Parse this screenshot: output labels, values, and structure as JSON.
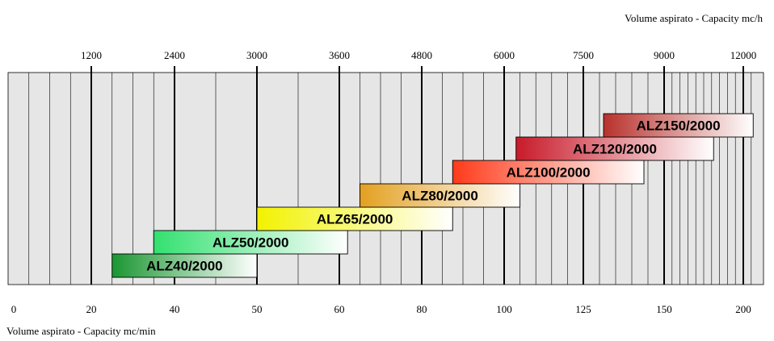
{
  "chart_data": {
    "type": "bar",
    "orientation": "horizontal-range",
    "top_axis_title": "Volume aspirato - Capacity mc/h",
    "bottom_axis_title": "Volume aspirato - Capacity mc/min",
    "top_ticks": [
      "1200",
      "2400",
      "3000",
      "3600",
      "4800",
      "6000",
      "7500",
      "9000",
      "12000"
    ],
    "bottom_ticks": [
      "0",
      "20",
      "40",
      "50",
      "60",
      "80",
      "100",
      "125",
      "150",
      "200"
    ],
    "series": [
      {
        "label": "ALZ40/2000",
        "start": 25,
        "end": 50,
        "color": "#1a9632"
      },
      {
        "label": "ALZ50/2000",
        "start": 35,
        "end": 62,
        "color": "#33e070"
      },
      {
        "label": "ALZ65/2000",
        "start": 50,
        "end": 87.5,
        "color": "#f2f200"
      },
      {
        "label": "ALZ80/2000",
        "start": 65,
        "end": 105,
        "color": "#e3a020"
      },
      {
        "label": "ALZ100/2000",
        "start": 87.5,
        "end": 143.75,
        "color": "#ff3a1a"
      },
      {
        "label": "ALZ120/2000",
        "start": 103.75,
        "end": 181.25,
        "color": "#c81a2a"
      },
      {
        "label": "ALZ150/2000",
        "start": 131.25,
        "end": 206.25,
        "color": "#b8312c"
      }
    ],
    "grid": true
  }
}
